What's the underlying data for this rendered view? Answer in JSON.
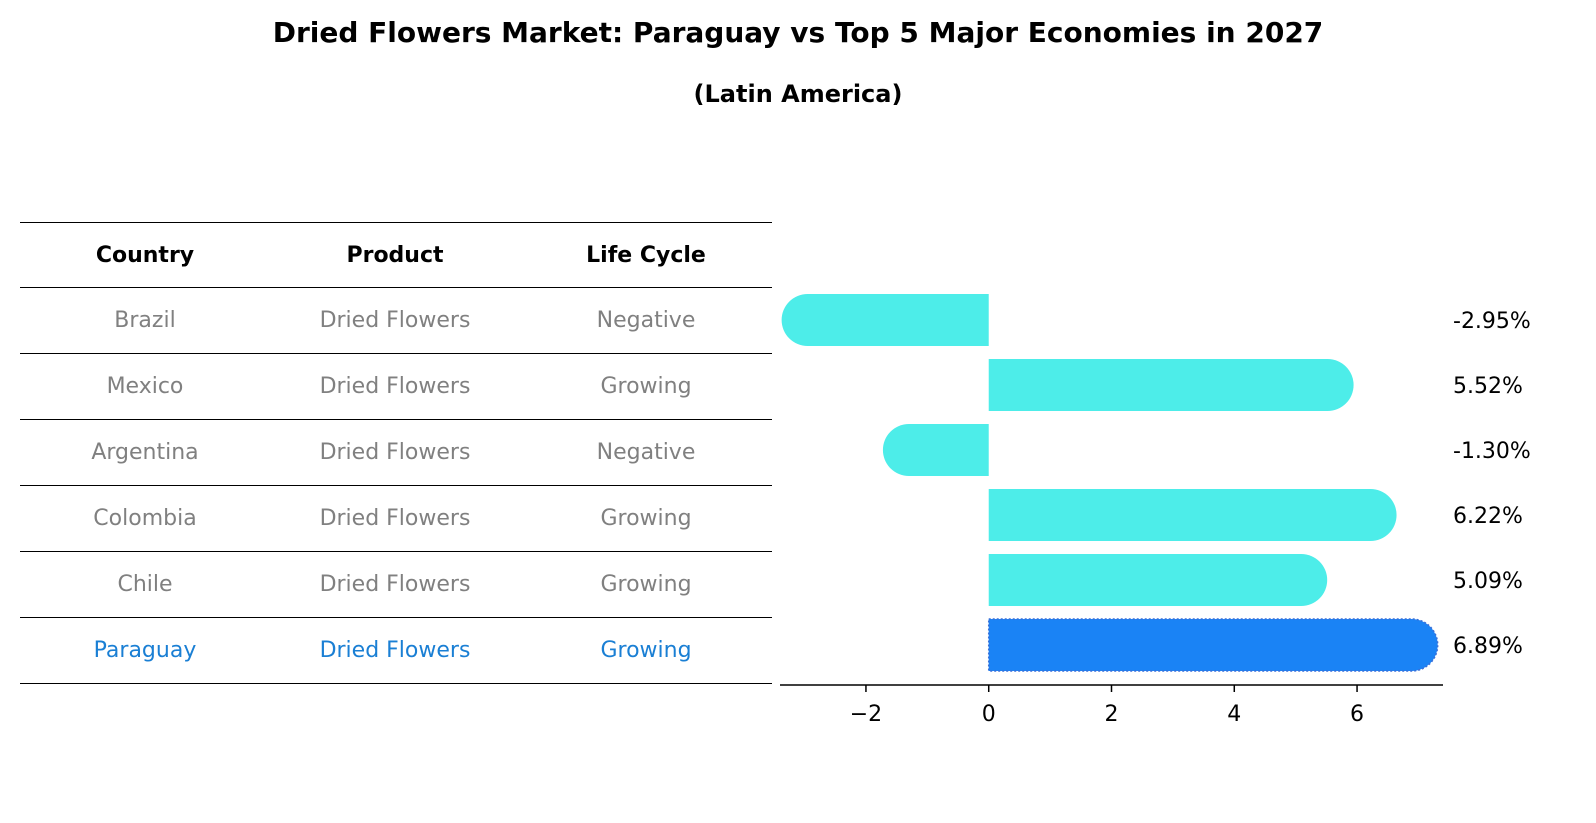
{
  "title": "Dried Flowers Market: Paraguay vs Top 5 Major Economies in 2027",
  "subtitle": "(Latin America)",
  "table": {
    "headers": [
      "Country",
      "Product",
      "Life Cycle"
    ],
    "rows": [
      {
        "country": "Brazil",
        "product": "Dried Flowers",
        "life_cycle": "Negative"
      },
      {
        "country": "Mexico",
        "product": "Dried Flowers",
        "life_cycle": "Growing"
      },
      {
        "country": "Argentina",
        "product": "Dried Flowers",
        "life_cycle": "Negative"
      },
      {
        "country": "Colombia",
        "product": "Dried Flowers",
        "life_cycle": "Growing"
      },
      {
        "country": "Chile",
        "product": "Dried Flowers",
        "life_cycle": "Growing"
      },
      {
        "country": "Paraguay",
        "product": "Dried Flowers",
        "life_cycle": "Growing"
      }
    ]
  },
  "colors": {
    "bar": "#4dede9",
    "highlight_bar": "#1a83f5",
    "highlight_text": "#1a7fd4",
    "muted_text": "#808080"
  },
  "chart_data": {
    "type": "bar",
    "orientation": "horizontal",
    "categories": [
      "Brazil",
      "Mexico",
      "Argentina",
      "Colombia",
      "Chile",
      "Paraguay"
    ],
    "values": [
      -2.95,
      5.52,
      -1.3,
      6.22,
      5.09,
      6.89
    ],
    "data_labels": [
      "-2.95%",
      "5.52%",
      "-1.30%",
      "6.22%",
      "5.09%",
      "6.89%"
    ],
    "highlight": "Paraguay",
    "xlim": [
      -3.4,
      7.4
    ],
    "xticks": [
      -2,
      0,
      2,
      4,
      6
    ],
    "xtick_labels": [
      "−2",
      "0",
      "2",
      "4",
      "6"
    ],
    "xlabel": "",
    "ylabel": ""
  }
}
